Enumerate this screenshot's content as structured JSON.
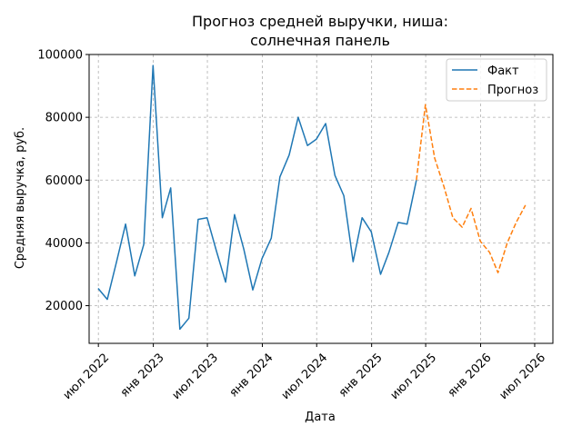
{
  "chart_data": {
    "type": "line",
    "title_lines": [
      "Прогноз средней выручки, ниша:",
      "солнечная панель"
    ],
    "xlabel": "Дата",
    "ylabel": "Средняя выручка, руб.",
    "x_ticks": [
      {
        "date": "2022-07-01",
        "label": "июл 2022"
      },
      {
        "date": "2023-01-01",
        "label": "янв 2023"
      },
      {
        "date": "2023-07-01",
        "label": "июл 2023"
      },
      {
        "date": "2024-01-01",
        "label": "янв 2024"
      },
      {
        "date": "2024-07-01",
        "label": "июл 2024"
      },
      {
        "date": "2025-01-01",
        "label": "янв 2025"
      },
      {
        "date": "2025-07-01",
        "label": "июл 2025"
      },
      {
        "date": "2026-01-01",
        "label": "янв 2026"
      },
      {
        "date": "2026-07-01",
        "label": "июл 2026"
      }
    ],
    "y_ticks": [
      20000,
      40000,
      60000,
      80000,
      100000
    ],
    "xlim": [
      "2022-05-31",
      "2026-08-31"
    ],
    "ylim": [
      8000,
      100000
    ],
    "grid": true,
    "legend_position": "top-right",
    "series": [
      {
        "name": "Факт",
        "style": "solid",
        "color": "#1f77b4",
        "points": [
          {
            "x": "2022-06-30",
            "y": 25500
          },
          {
            "x": "2022-07-31",
            "y": 22000
          },
          {
            "x": "2022-08-31",
            "y": 34000
          },
          {
            "x": "2022-09-30",
            "y": 46000
          },
          {
            "x": "2022-10-31",
            "y": 29500
          },
          {
            "x": "2022-11-30",
            "y": 39500
          },
          {
            "x": "2022-12-31",
            "y": 96500
          },
          {
            "x": "2023-01-31",
            "y": 48000
          },
          {
            "x": "2023-02-28",
            "y": 57500
          },
          {
            "x": "2023-03-31",
            "y": 12500
          },
          {
            "x": "2023-04-30",
            "y": 16000
          },
          {
            "x": "2023-05-31",
            "y": 47500
          },
          {
            "x": "2023-06-30",
            "y": 48000
          },
          {
            "x": "2023-07-31",
            "y": 37500
          },
          {
            "x": "2023-08-31",
            "y": 27500
          },
          {
            "x": "2023-09-30",
            "y": 49000
          },
          {
            "x": "2023-10-31",
            "y": 38000
          },
          {
            "x": "2023-11-30",
            "y": 25000
          },
          {
            "x": "2023-12-31",
            "y": 35000
          },
          {
            "x": "2024-01-31",
            "y": 41500
          },
          {
            "x": "2024-02-29",
            "y": 61000
          },
          {
            "x": "2024-03-31",
            "y": 68000
          },
          {
            "x": "2024-04-30",
            "y": 80000
          },
          {
            "x": "2024-05-31",
            "y": 71000
          },
          {
            "x": "2024-06-30",
            "y": 73000
          },
          {
            "x": "2024-07-31",
            "y": 78000
          },
          {
            "x": "2024-08-31",
            "y": 61500
          },
          {
            "x": "2024-09-30",
            "y": 55000
          },
          {
            "x": "2024-10-31",
            "y": 34000
          },
          {
            "x": "2024-11-30",
            "y": 48000
          },
          {
            "x": "2024-12-31",
            "y": 43500
          },
          {
            "x": "2025-01-31",
            "y": 30000
          },
          {
            "x": "2025-02-28",
            "y": 37000
          },
          {
            "x": "2025-03-31",
            "y": 46500
          },
          {
            "x": "2025-04-30",
            "y": 46000
          },
          {
            "x": "2025-05-31",
            "y": 60000
          }
        ]
      },
      {
        "name": "Прогноз",
        "style": "dashed",
        "color": "#ff7f0e",
        "points": [
          {
            "x": "2025-05-31",
            "y": 60000
          },
          {
            "x": "2025-06-30",
            "y": 84000
          },
          {
            "x": "2025-07-31",
            "y": 67000
          },
          {
            "x": "2025-08-31",
            "y": 58000
          },
          {
            "x": "2025-09-30",
            "y": 48000
          },
          {
            "x": "2025-10-31",
            "y": 45000
          },
          {
            "x": "2025-11-30",
            "y": 51000
          },
          {
            "x": "2025-12-31",
            "y": 40500
          },
          {
            "x": "2026-01-31",
            "y": 37000
          },
          {
            "x": "2026-02-28",
            "y": 30500
          },
          {
            "x": "2026-03-31",
            "y": 40000
          },
          {
            "x": "2026-04-30",
            "y": 46500
          },
          {
            "x": "2026-05-31",
            "y": 52000
          }
        ]
      }
    ]
  }
}
